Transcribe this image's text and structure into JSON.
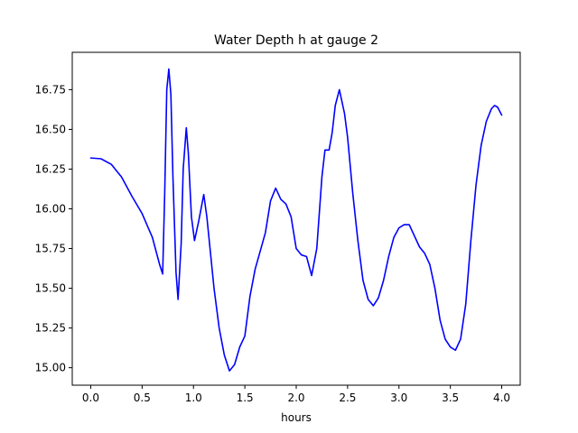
{
  "chart_data": {
    "type": "line",
    "title": "Water Depth h at gauge 2",
    "xlabel": "hours",
    "ylabel": "",
    "xlim": [
      -0.18,
      4.18
    ],
    "ylim": [
      14.89,
      16.985
    ],
    "xticks": [
      0.0,
      0.5,
      1.0,
      1.5,
      2.0,
      2.5,
      3.0,
      3.5,
      4.0
    ],
    "xtick_labels": [
      "0.0",
      "0.5",
      "1.0",
      "1.5",
      "2.0",
      "2.5",
      "3.0",
      "3.5",
      "4.0"
    ],
    "yticks": [
      15.0,
      15.25,
      15.5,
      15.75,
      16.0,
      16.25,
      16.5,
      16.75
    ],
    "ytick_labels": [
      "15.00",
      "15.25",
      "15.50",
      "15.75",
      "16.00",
      "16.25",
      "16.50",
      "16.75"
    ],
    "grid": false,
    "legend": "none",
    "series": [
      {
        "color": "#0000ff",
        "points": [
          [
            0.0,
            16.32
          ],
          [
            0.1,
            16.315
          ],
          [
            0.2,
            16.28
          ],
          [
            0.3,
            16.2
          ],
          [
            0.4,
            16.08
          ],
          [
            0.5,
            15.97
          ],
          [
            0.6,
            15.82
          ],
          [
            0.67,
            15.65
          ],
          [
            0.7,
            15.59
          ],
          [
            0.72,
            16.1
          ],
          [
            0.74,
            16.75
          ],
          [
            0.76,
            16.88
          ],
          [
            0.78,
            16.72
          ],
          [
            0.8,
            16.2
          ],
          [
            0.83,
            15.6
          ],
          [
            0.85,
            15.43
          ],
          [
            0.88,
            15.78
          ],
          [
            0.9,
            16.25
          ],
          [
            0.93,
            16.51
          ],
          [
            0.95,
            16.35
          ],
          [
            0.98,
            15.95
          ],
          [
            1.01,
            15.8
          ],
          [
            1.05,
            15.92
          ],
          [
            1.1,
            16.09
          ],
          [
            1.13,
            15.95
          ],
          [
            1.2,
            15.5
          ],
          [
            1.25,
            15.25
          ],
          [
            1.3,
            15.08
          ],
          [
            1.35,
            14.98
          ],
          [
            1.4,
            15.02
          ],
          [
            1.45,
            15.13
          ],
          [
            1.5,
            15.2
          ],
          [
            1.55,
            15.45
          ],
          [
            1.6,
            15.62
          ],
          [
            1.7,
            15.85
          ],
          [
            1.75,
            16.05
          ],
          [
            1.8,
            16.13
          ],
          [
            1.85,
            16.06
          ],
          [
            1.9,
            16.03
          ],
          [
            1.95,
            15.95
          ],
          [
            2.0,
            15.75
          ],
          [
            2.05,
            15.71
          ],
          [
            2.1,
            15.7
          ],
          [
            2.15,
            15.58
          ],
          [
            2.2,
            15.75
          ],
          [
            2.25,
            16.2
          ],
          [
            2.28,
            16.37
          ],
          [
            2.32,
            16.37
          ],
          [
            2.35,
            16.48
          ],
          [
            2.38,
            16.65
          ],
          [
            2.42,
            16.75
          ],
          [
            2.47,
            16.6
          ],
          [
            2.5,
            16.45
          ],
          [
            2.55,
            16.1
          ],
          [
            2.6,
            15.8
          ],
          [
            2.65,
            15.55
          ],
          [
            2.7,
            15.43
          ],
          [
            2.75,
            15.39
          ],
          [
            2.8,
            15.44
          ],
          [
            2.85,
            15.55
          ],
          [
            2.9,
            15.7
          ],
          [
            2.95,
            15.82
          ],
          [
            3.0,
            15.88
          ],
          [
            3.05,
            15.9
          ],
          [
            3.1,
            15.9
          ],
          [
            3.15,
            15.83
          ],
          [
            3.2,
            15.76
          ],
          [
            3.25,
            15.72
          ],
          [
            3.3,
            15.65
          ],
          [
            3.35,
            15.5
          ],
          [
            3.4,
            15.3
          ],
          [
            3.45,
            15.18
          ],
          [
            3.5,
            15.13
          ],
          [
            3.55,
            15.11
          ],
          [
            3.6,
            15.18
          ],
          [
            3.65,
            15.4
          ],
          [
            3.7,
            15.8
          ],
          [
            3.75,
            16.15
          ],
          [
            3.8,
            16.4
          ],
          [
            3.85,
            16.55
          ],
          [
            3.9,
            16.63
          ],
          [
            3.93,
            16.65
          ],
          [
            3.96,
            16.64
          ],
          [
            4.0,
            16.59
          ]
        ]
      }
    ]
  }
}
